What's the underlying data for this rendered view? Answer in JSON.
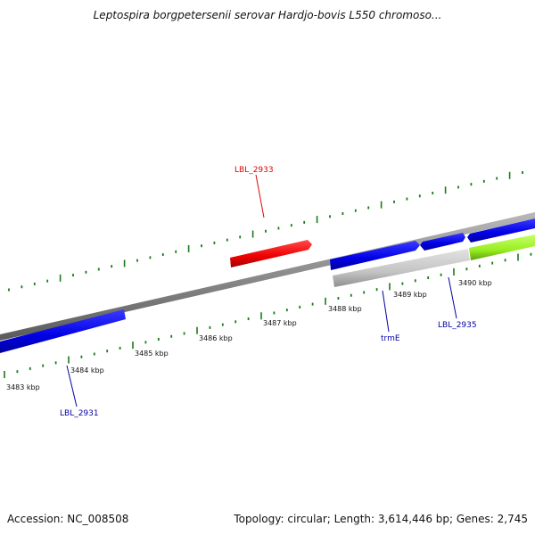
{
  "title": "Leptospira borgpetersenii serovar Hardjo-bovis L550 chromoso...",
  "footer": {
    "accession": "Accession: NC_008508",
    "summary": "Topology: circular; Length: 3,614,446 bp; Genes: 2,745"
  },
  "colors": {
    "backbone": "#8a8a8a",
    "tick": "#1a7a1a",
    "gene_blue": "#0000e6",
    "gene_red": "#ee0000",
    "gene_grey": "#c4c4c4",
    "gene_green": "#99ee22",
    "label_red": "#dd0000",
    "label_blue": "#0000aa"
  },
  "scale": {
    "tick_labels": [
      "3483 kbp",
      "3484 kbp",
      "3485 kbp",
      "3486 kbp",
      "3487 kbp",
      "3488 kbp",
      "3489 kbp",
      "3490 kbp"
    ]
  },
  "gene_labels": [
    {
      "name": "LBL_2933",
      "color": "red"
    },
    {
      "name": "LBL_2931",
      "color": "blue"
    },
    {
      "name": "trmE",
      "color": "blue"
    },
    {
      "name": "LBL_2935",
      "color": "blue"
    }
  ]
}
